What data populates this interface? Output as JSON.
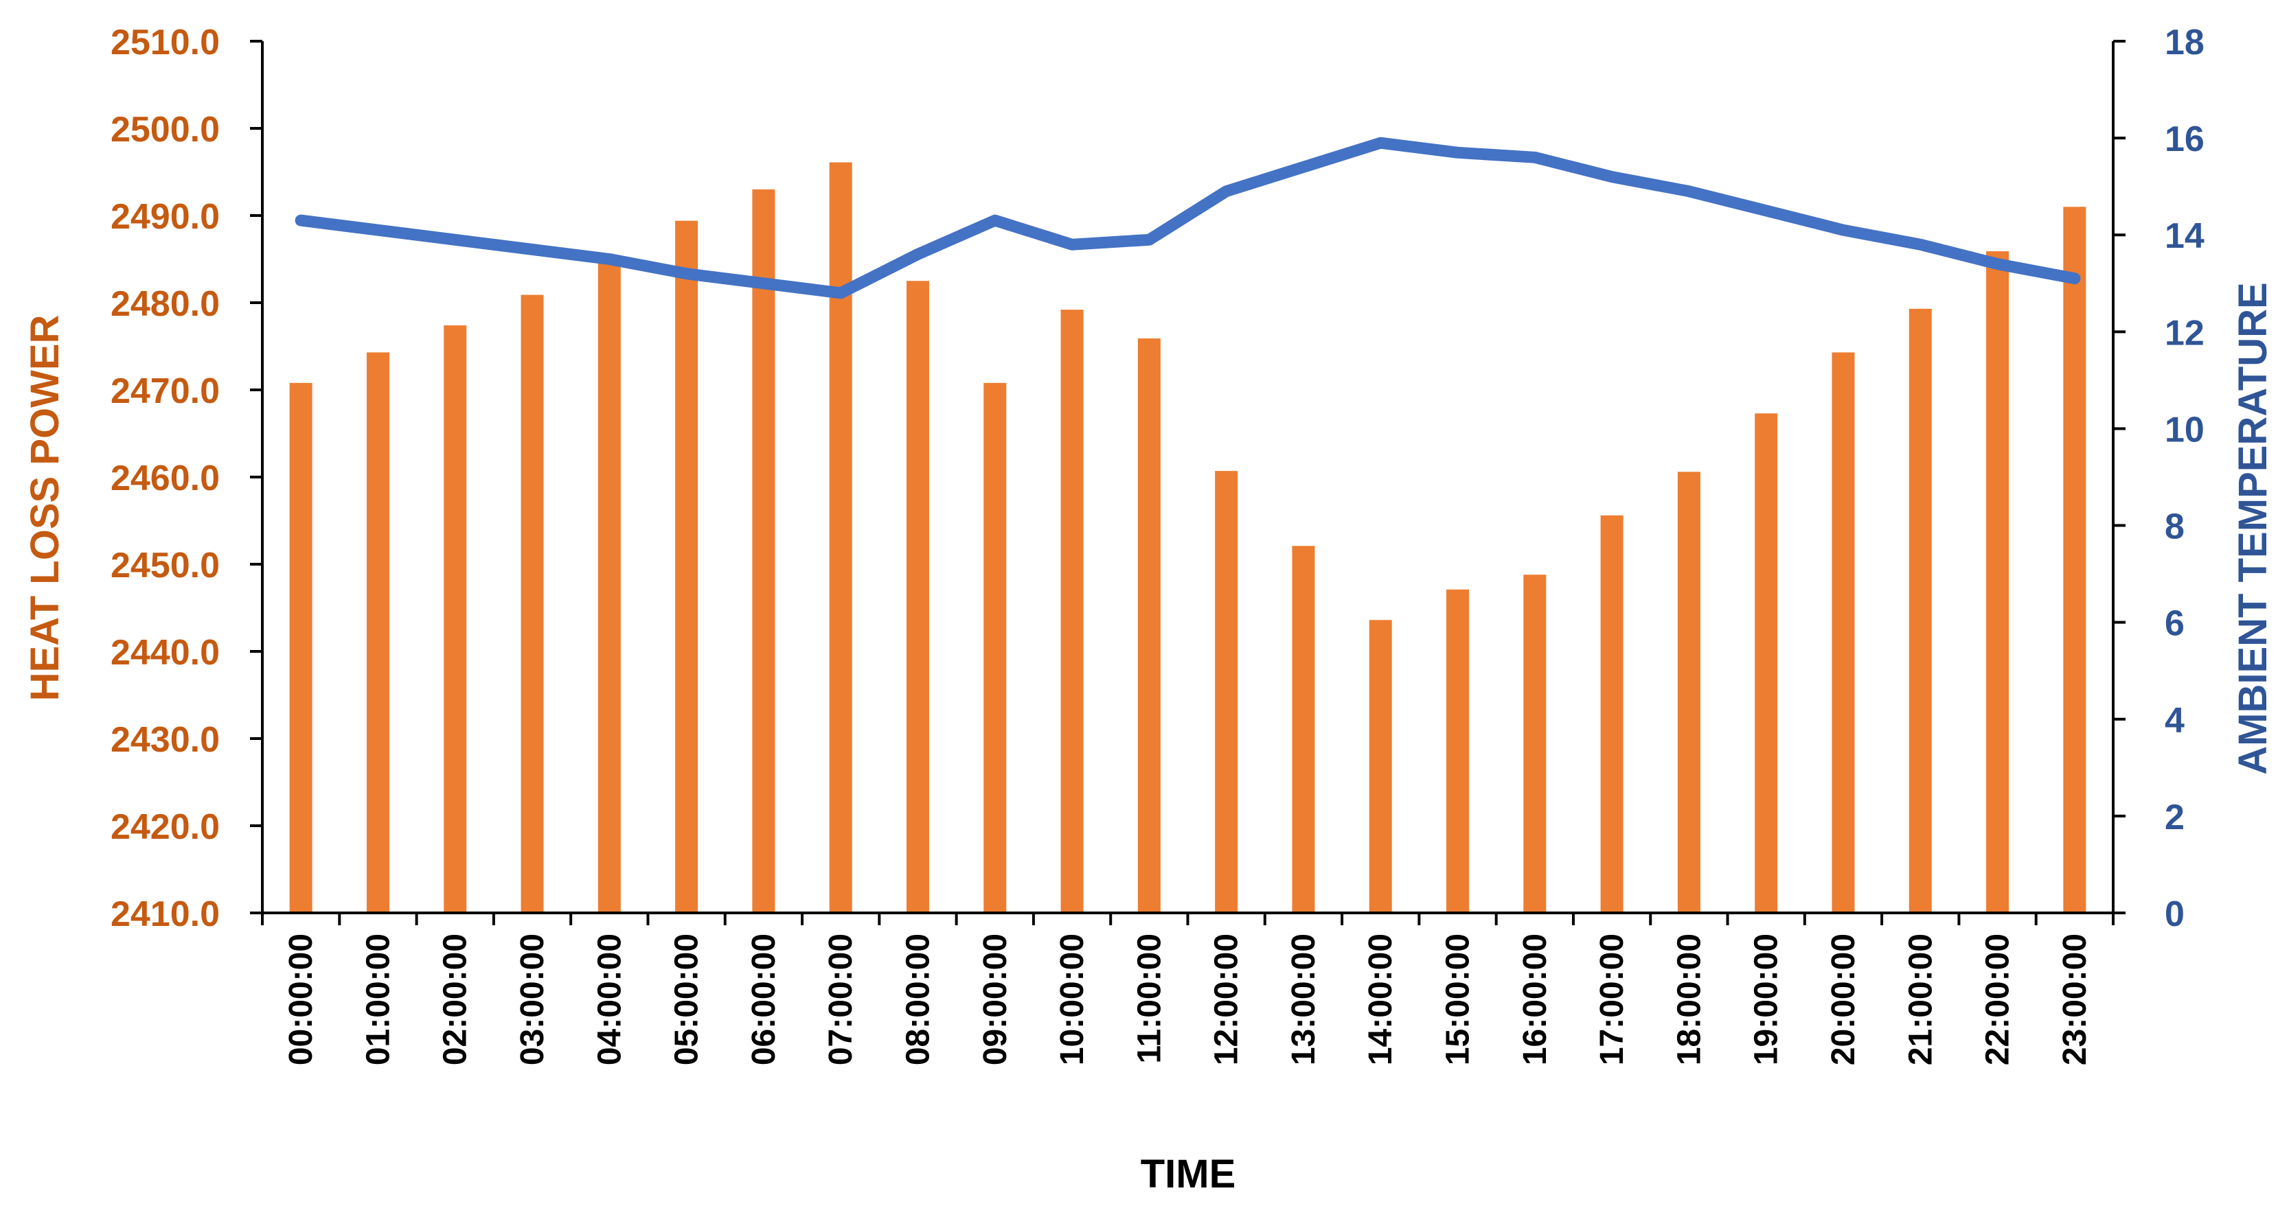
{
  "chart_data": {
    "type": "bar",
    "xlabel": "TIME",
    "categories": [
      "00:00:00",
      "01:00:00",
      "02:00:00",
      "03:00:00",
      "04:00:00",
      "05:00:00",
      "06:00:00",
      "07:00:00",
      "08:00:00",
      "09:00:00",
      "10:00:00",
      "11:00:00",
      "12:00:00",
      "13:00:00",
      "14:00:00",
      "15:00:00",
      "16:00:00",
      "17:00:00",
      "18:00:00",
      "19:00:00",
      "20:00:00",
      "21:00:00",
      "22:00:00",
      "23:00:00"
    ],
    "left_axis": {
      "label": "HEAT LOSS POWER",
      "ylim": [
        2410,
        2510
      ],
      "ticks": [
        "2410.0",
        "2420.0",
        "2430.0",
        "2440.0",
        "2450.0",
        "2460.0",
        "2470.0",
        "2480.0",
        "2490.0",
        "2500.0",
        "2510.0"
      ],
      "color": "#C55A11"
    },
    "right_axis": {
      "label": "AMBIENT TEMPERATURE",
      "ylim": [
        0,
        18
      ],
      "ticks": [
        "0",
        "2",
        "4",
        "6",
        "8",
        "10",
        "12",
        "14",
        "16",
        "18"
      ],
      "color": "#2F5597"
    },
    "series": [
      {
        "type": "bar",
        "axis": "left",
        "color": "#ED7D31",
        "values": [
          2470.8,
          2474.3,
          2477.4,
          2480.9,
          2484.7,
          2489.4,
          2493.0,
          2496.1,
          2482.5,
          2470.8,
          2479.2,
          2475.9,
          2460.7,
          2452.1,
          2443.6,
          2447.1,
          2448.8,
          2455.6,
          2460.6,
          2467.3,
          2474.3,
          2479.3,
          2485.9,
          2491.0
        ]
      },
      {
        "type": "line",
        "axis": "right",
        "color": "#4472C4",
        "values": [
          14.3,
          14.1,
          13.9,
          13.7,
          13.5,
          13.2,
          13.0,
          12.8,
          13.6,
          14.3,
          13.8,
          13.9,
          14.9,
          15.4,
          15.9,
          15.7,
          15.6,
          15.2,
          14.9,
          14.5,
          14.1,
          13.8,
          13.4,
          13.1
        ]
      }
    ],
    "grid": false,
    "legend": "none"
  }
}
